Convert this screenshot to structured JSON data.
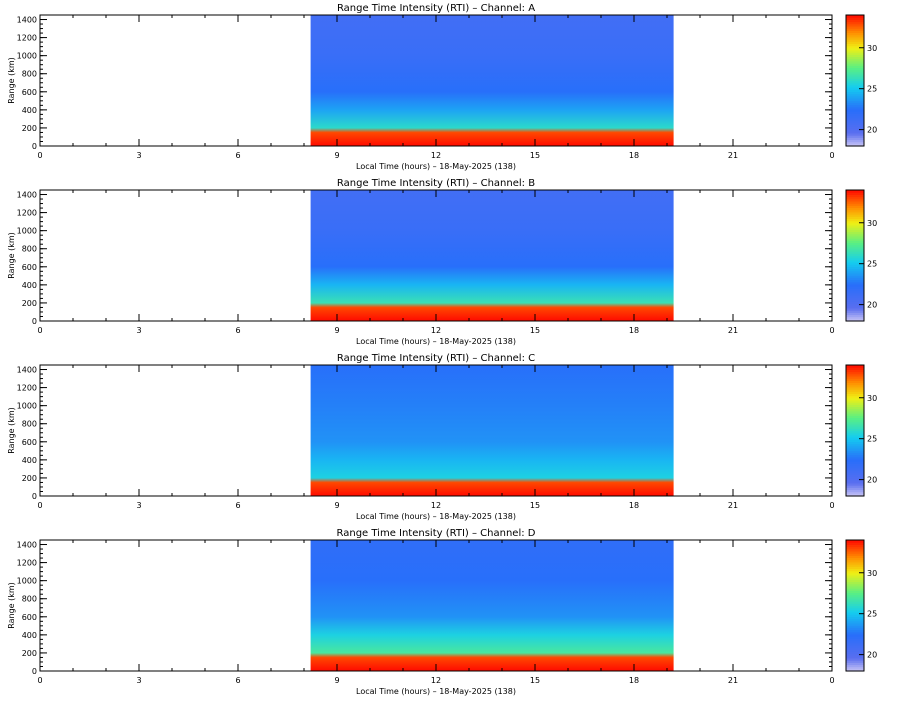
{
  "chart_data": [
    {
      "type": "heatmap",
      "title": "Range Time Intensity (RTI) – Channel: A",
      "xlabel": "Local Time (hours) – 18-May-2025 (138)",
      "ylabel": "Range (km)",
      "xlim": [
        0,
        24
      ],
      "ylim": [
        0,
        1450
      ],
      "x_tick_labels": [
        "0",
        "3",
        "6",
        "9",
        "12",
        "15",
        "18",
        "21",
        "0"
      ],
      "y_tick_labels": [
        "0",
        "200",
        "400",
        "600",
        "800",
        "1000",
        "1200",
        "1400"
      ],
      "colorbar": {
        "range": [
          18,
          34
        ],
        "tick_labels": [
          "20",
          "25",
          "30"
        ]
      },
      "data_extent_hours": [
        8.2,
        19.2
      ],
      "range_profile": [
        {
          "range_km": 0,
          "value": 34
        },
        {
          "range_km": 150,
          "value": 33
        },
        {
          "range_km": 200,
          "value": 26
        },
        {
          "range_km": 400,
          "value": 24
        },
        {
          "range_km": 600,
          "value": 22.5
        },
        {
          "range_km": 1000,
          "value": 21.5
        },
        {
          "range_km": 1450,
          "value": 21
        }
      ]
    },
    {
      "type": "heatmap",
      "title": "Range Time Intensity (RTI) – Channel: B",
      "xlabel": "Local Time (hours) – 18-May-2025 (138)",
      "ylabel": "Range (km)",
      "xlim": [
        0,
        24
      ],
      "ylim": [
        0,
        1450
      ],
      "x_tick_labels": [
        "0",
        "3",
        "6",
        "9",
        "12",
        "15",
        "18",
        "21",
        "0"
      ],
      "y_tick_labels": [
        "0",
        "200",
        "400",
        "600",
        "800",
        "1000",
        "1200",
        "1400"
      ],
      "colorbar": {
        "range": [
          18,
          34
        ],
        "tick_labels": [
          "20",
          "25",
          "30"
        ]
      },
      "data_extent_hours": [
        8.2,
        19.2
      ],
      "range_profile": [
        {
          "range_km": 0,
          "value": 34
        },
        {
          "range_km": 150,
          "value": 33
        },
        {
          "range_km": 200,
          "value": 26.5
        },
        {
          "range_km": 400,
          "value": 24.5
        },
        {
          "range_km": 600,
          "value": 22.5
        },
        {
          "range_km": 1000,
          "value": 21.5
        },
        {
          "range_km": 1450,
          "value": 21
        }
      ]
    },
    {
      "type": "heatmap",
      "title": "Range Time Intensity (RTI) – Channel: C",
      "xlabel": "Local Time (hours) – 18-May-2025 (138)",
      "ylabel": "Range (km)",
      "xlim": [
        0,
        24
      ],
      "ylim": [
        0,
        1450
      ],
      "x_tick_labels": [
        "0",
        "3",
        "6",
        "9",
        "12",
        "15",
        "18",
        "21",
        "0"
      ],
      "y_tick_labels": [
        "0",
        "200",
        "400",
        "600",
        "800",
        "1000",
        "1200",
        "1400"
      ],
      "colorbar": {
        "range": [
          18,
          34
        ],
        "tick_labels": [
          "20",
          "25",
          "30"
        ]
      },
      "data_extent_hours": [
        8.2,
        19.2
      ],
      "range_profile": [
        {
          "range_km": 0,
          "value": 34
        },
        {
          "range_km": 150,
          "value": 33
        },
        {
          "range_km": 200,
          "value": 25.5
        },
        {
          "range_km": 400,
          "value": 24.5
        },
        {
          "range_km": 600,
          "value": 23.5
        },
        {
          "range_km": 1000,
          "value": 23
        },
        {
          "range_km": 1450,
          "value": 22.5
        }
      ]
    },
    {
      "type": "heatmap",
      "title": "Range Time Intensity (RTI) – Channel: D",
      "xlabel": "Local Time (hours) – 18-May-2025 (138)",
      "ylabel": "Range (km)",
      "xlim": [
        0,
        24
      ],
      "ylim": [
        0,
        1450
      ],
      "x_tick_labels": [
        "0",
        "3",
        "6",
        "9",
        "12",
        "15",
        "18",
        "21",
        "0"
      ],
      "y_tick_labels": [
        "0",
        "200",
        "400",
        "600",
        "800",
        "1000",
        "1200",
        "1400"
      ],
      "colorbar": {
        "range": [
          18,
          34
        ],
        "tick_labels": [
          "20",
          "25",
          "30"
        ]
      },
      "data_extent_hours": [
        8.2,
        19.2
      ],
      "range_profile": [
        {
          "range_km": 0,
          "value": 34
        },
        {
          "range_km": 150,
          "value": 33
        },
        {
          "range_km": 200,
          "value": 27
        },
        {
          "range_km": 400,
          "value": 25.5
        },
        {
          "range_km": 600,
          "value": 23.5
        },
        {
          "range_km": 1000,
          "value": 22.5
        },
        {
          "range_km": 1450,
          "value": 22
        }
      ]
    }
  ]
}
